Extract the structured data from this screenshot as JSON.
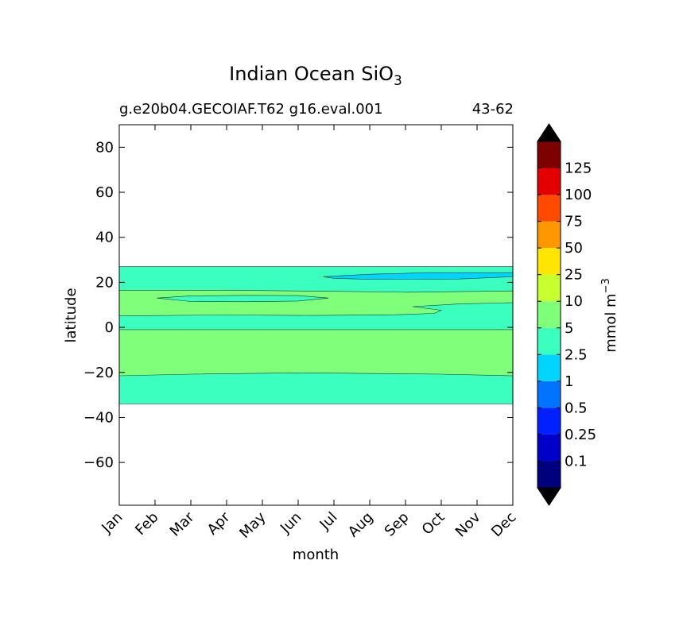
{
  "chart_data": {
    "type": "heatmap",
    "title_main": "Indian Ocean SiO",
    "title_sub": "3",
    "subtitle_left": "g.e20b04.GECOIAF.T62 g16.eval.001",
    "subtitle_right": "43-62",
    "xlabel": "month",
    "ylabel": "latitude",
    "x_categories": [
      "Jan",
      "Feb",
      "Mar",
      "Apr",
      "May",
      "Jun",
      "Jul",
      "Aug",
      "Sep",
      "Oct",
      "Nov",
      "Dec"
    ],
    "xlim": [
      0,
      11
    ],
    "ylim": [
      -79,
      90
    ],
    "yticks": [
      80,
      60,
      40,
      20,
      0,
      -20,
      -40,
      -60
    ],
    "ytick_labels": [
      "80",
      "60",
      "40",
      "20",
      "0",
      "−20",
      "−40",
      "−60"
    ],
    "data_lat_range": [
      -34,
      27
    ],
    "colorbar": {
      "label_main": "mmol m",
      "label_sup": "−3",
      "levels": [
        "0.1",
        "0.25",
        "0.5",
        "1",
        "2.5",
        "5",
        "10",
        "25",
        "50",
        "75",
        "100",
        "125"
      ],
      "colors": [
        "#00007f",
        "#0000c8",
        "#0020ff",
        "#0074ff",
        "#00d4ff",
        "#3affbf",
        "#7fff7a",
        "#c8ff2e",
        "#ffe500",
        "#ff9800",
        "#ff4a00",
        "#e40000",
        "#7f0000"
      ],
      "under_color": "#000000",
      "over_color": "#000000"
    },
    "regions": [
      {
        "name": "2.5-5",
        "fill": "#3affbf",
        "points": [
          [
            0,
            27
          ],
          [
            11,
            27
          ],
          [
            11,
            -34
          ],
          [
            0,
            -34
          ]
        ]
      },
      {
        "name": "5-10 southern",
        "fill": "#7fff7a",
        "points": [
          [
            0,
            -1
          ],
          [
            11,
            -1
          ],
          [
            11,
            -21.5
          ],
          [
            9,
            -20.8
          ],
          [
            5,
            -20.2
          ],
          [
            2,
            -20.8
          ],
          [
            0,
            -21.5
          ]
        ]
      },
      {
        "name": "5-10 northern",
        "fill": "#7fff7a",
        "points": [
          [
            0,
            16.5
          ],
          [
            3,
            16.5
          ],
          [
            6,
            16
          ],
          [
            8,
            15.6
          ],
          [
            11,
            16.2
          ],
          [
            11,
            11
          ],
          [
            9.5,
            10.4
          ],
          [
            8.2,
            9.2
          ],
          [
            9,
            7.6
          ],
          [
            8.8,
            6.2
          ],
          [
            7.7,
            5.6
          ],
          [
            5.5,
            5.3
          ],
          [
            3,
            5.5
          ],
          [
            0,
            5.1
          ]
        ]
      },
      {
        "name": "2.5-5 embedded",
        "fill": "#3affbf",
        "points": [
          [
            1.05,
            13
          ],
          [
            2,
            14
          ],
          [
            3.5,
            14.2
          ],
          [
            5,
            14.1
          ],
          [
            5.85,
            13
          ],
          [
            5,
            11.7
          ],
          [
            3.5,
            11.4
          ],
          [
            2,
            11.5
          ]
        ]
      },
      {
        "name": "1-2.5",
        "fill": "#00d4ff",
        "points": [
          [
            5.7,
            22.5
          ],
          [
            7,
            23.6
          ],
          [
            8.7,
            24.3
          ],
          [
            11,
            24.3
          ],
          [
            11,
            22.5
          ],
          [
            9.5,
            21.5
          ],
          [
            7,
            21.3
          ],
          [
            6,
            21.8
          ]
        ]
      }
    ]
  }
}
